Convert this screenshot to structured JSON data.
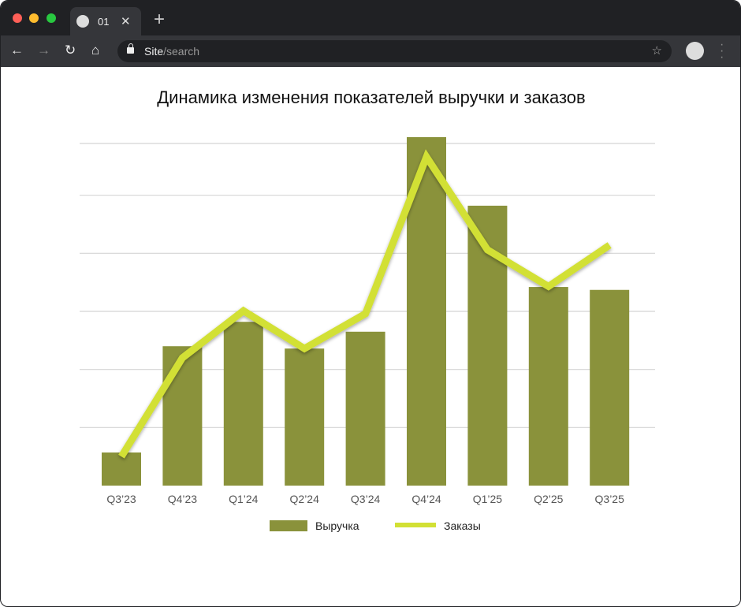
{
  "browser": {
    "tab_title": "01",
    "url_host": "Site",
    "url_path": "/search"
  },
  "chart_data": {
    "type": "bar+line",
    "title": "Динамика изменения показателей выручки и заказов",
    "categories": [
      "Q3’23",
      "Q4’23",
      "Q1’24",
      "Q2’24",
      "Q3’24",
      "Q4’24",
      "Q1’25",
      "Q2’25",
      "Q3’25"
    ],
    "series": [
      {
        "name": "Выручка",
        "type": "bar",
        "color": "#8a923b",
        "values": [
          0.57,
          2.4,
          2.82,
          2.36,
          2.65,
          6.0,
          4.82,
          3.42,
          3.37
        ]
      },
      {
        "name": "Заказы",
        "type": "line",
        "color": "#d2e034",
        "values": [
          0.5,
          2.2,
          3.01,
          2.36,
          2.96,
          5.66,
          4.06,
          3.43,
          4.14
        ]
      }
    ],
    "ylim": [
      0,
      6
    ],
    "y_axis_labels_shown": false,
    "grid": true,
    "legend": "bottom"
  }
}
